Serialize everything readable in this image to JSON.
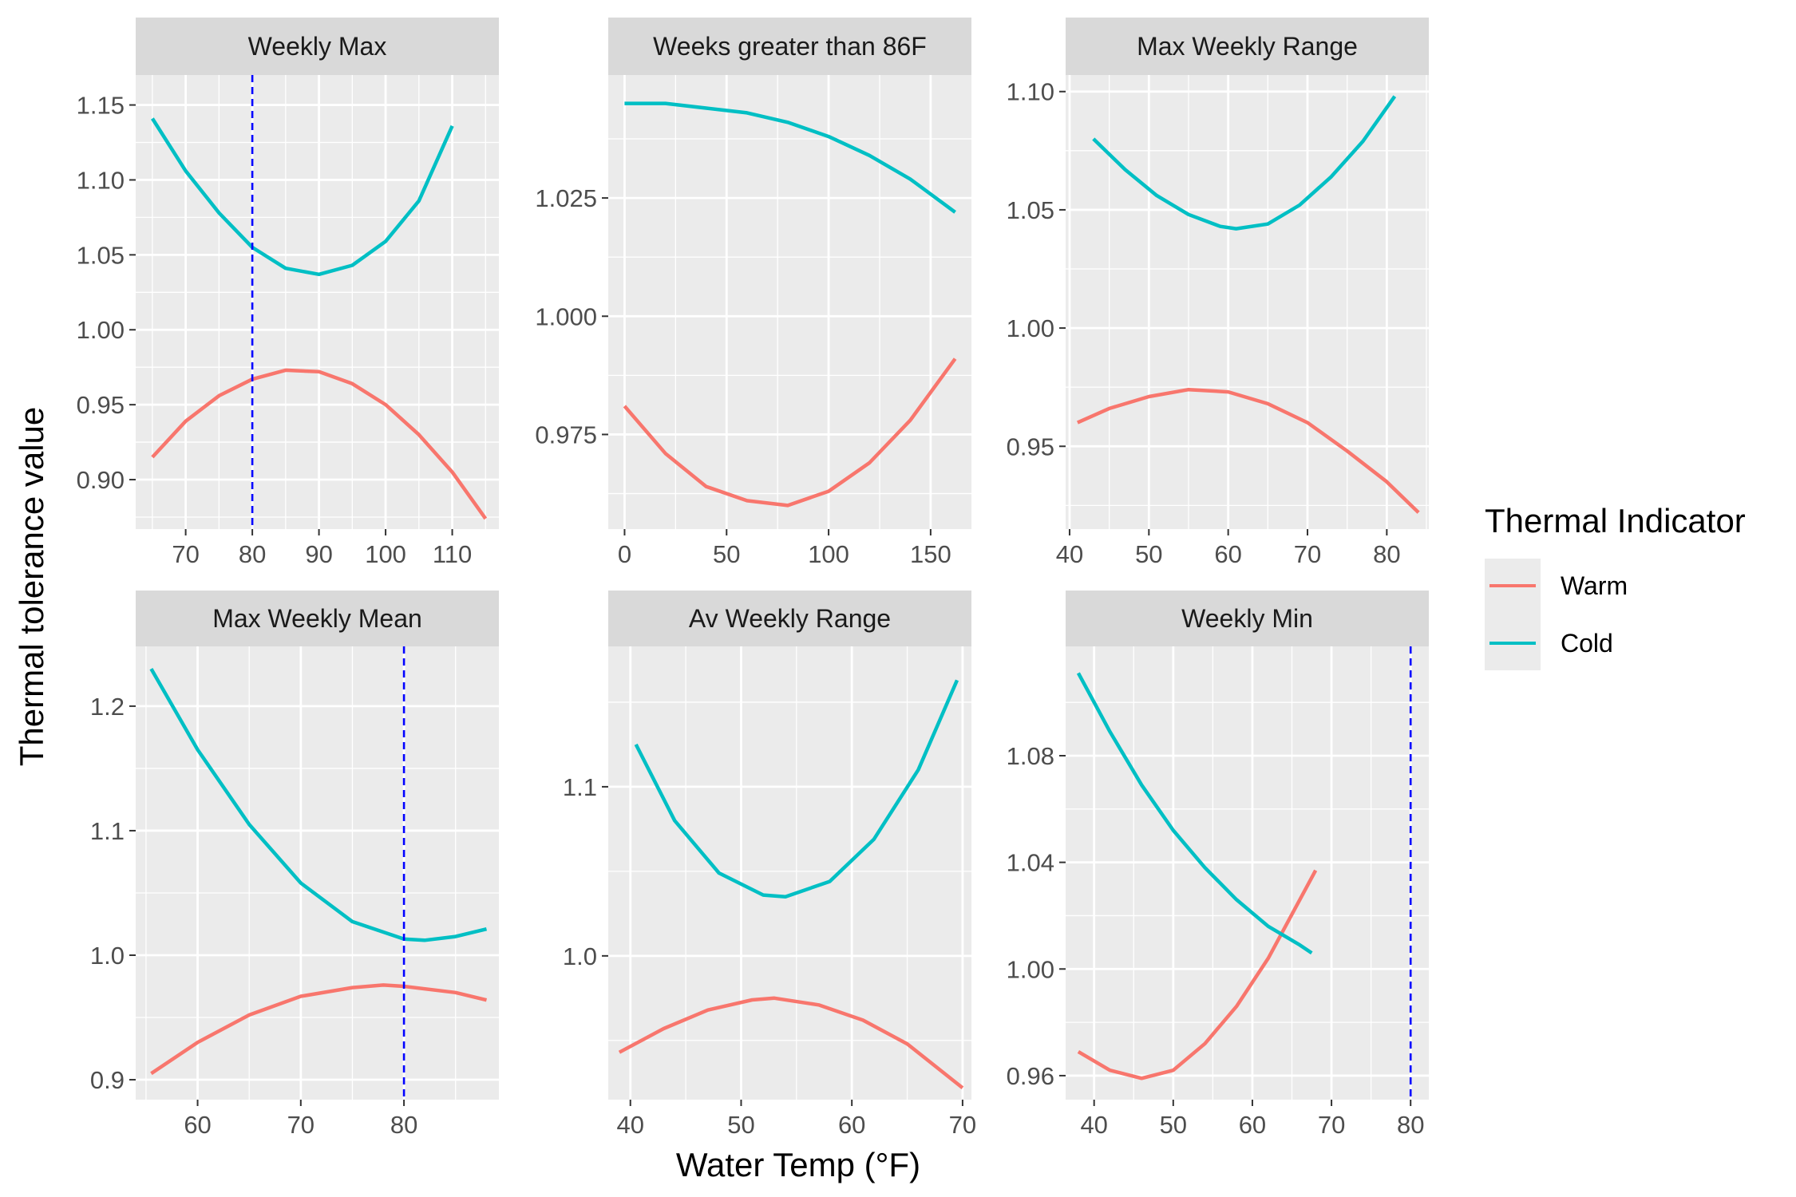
{
  "chart_data": {
    "type": "line",
    "xlabel": "Water Temp (°F)",
    "ylabel": "Thermal tolerance value",
    "legend": {
      "title": "Thermal Indicator",
      "position": "right",
      "entries": [
        {
          "name": "Warm",
          "color": "#F8766D"
        },
        {
          "name": "Cold",
          "color": "#00BFC4"
        }
      ]
    },
    "colors": {
      "Warm": "#F8766D",
      "Cold": "#00BFC4",
      "reference": "#0000FF",
      "panel_bg": "#EBEBEB",
      "strip_bg": "#D9D9D9",
      "grid": "#FFFFFF"
    },
    "grid": true,
    "panels": [
      {
        "title": "Weekly Max",
        "xlim": [
          62.5,
          117
        ],
        "ylim": [
          0.867,
          1.17
        ],
        "xticks": [
          70,
          80,
          90,
          100,
          110
        ],
        "yticks": [
          0.9,
          0.95,
          1.0,
          1.05,
          1.1,
          1.15
        ],
        "ytick_labels": [
          "0.90",
          "0.95",
          "1.00",
          "1.05",
          "1.10",
          "1.15"
        ],
        "vline": 80,
        "series": [
          {
            "name": "Warm",
            "x": [
              65,
              70,
              75,
              80,
              85,
              90,
              95,
              100,
              105,
              110,
              115
            ],
            "y": [
              0.915,
              0.939,
              0.956,
              0.967,
              0.973,
              0.972,
              0.964,
              0.95,
              0.93,
              0.905,
              0.874
            ]
          },
          {
            "name": "Cold",
            "x": [
              65,
              70,
              75,
              80,
              85,
              90,
              95,
              100,
              105,
              110
            ],
            "y": [
              1.141,
              1.106,
              1.078,
              1.055,
              1.041,
              1.037,
              1.043,
              1.059,
              1.086,
              1.136
            ]
          }
        ]
      },
      {
        "title": "Weeks greater than 86F",
        "xlim": [
          -8,
          170
        ],
        "ylim": [
          0.955,
          1.051
        ],
        "xticks": [
          0,
          50,
          100,
          150
        ],
        "yticks": [
          0.975,
          1.0,
          1.025
        ],
        "ytick_labels": [
          "0.975",
          "1.000",
          "1.025"
        ],
        "vline": null,
        "series": [
          {
            "name": "Warm",
            "x": [
              0,
              20,
              40,
              60,
              80,
              100,
              120,
              140,
              162
            ],
            "y": [
              0.981,
              0.971,
              0.964,
              0.961,
              0.96,
              0.963,
              0.969,
              0.978,
              0.991
            ]
          },
          {
            "name": "Cold",
            "x": [
              0,
              20,
              40,
              60,
              80,
              100,
              120,
              140,
              162
            ],
            "y": [
              1.045,
              1.045,
              1.044,
              1.043,
              1.041,
              1.038,
              1.034,
              1.029,
              1.022
            ]
          }
        ]
      },
      {
        "title": "Max Weekly Range",
        "xlim": [
          39.5,
          85.3
        ],
        "ylim": [
          0.915,
          1.107
        ],
        "xticks": [
          40,
          50,
          60,
          70,
          80
        ],
        "yticks": [
          0.95,
          1.0,
          1.05,
          1.1
        ],
        "ytick_labels": [
          "0.95",
          "1.00",
          "1.05",
          "1.10"
        ],
        "vline": null,
        "series": [
          {
            "name": "Warm",
            "x": [
              41,
              45,
              50,
              55,
              60,
              65,
              70,
              75,
              80,
              84
            ],
            "y": [
              0.96,
              0.966,
              0.971,
              0.974,
              0.973,
              0.968,
              0.96,
              0.948,
              0.935,
              0.922
            ]
          },
          {
            "name": "Cold",
            "x": [
              43,
              47,
              51,
              55,
              59,
              61,
              65,
              69,
              73,
              77,
              81
            ],
            "y": [
              1.08,
              1.067,
              1.056,
              1.048,
              1.043,
              1.042,
              1.044,
              1.052,
              1.064,
              1.079,
              1.098
            ]
          }
        ]
      },
      {
        "title": "Max Weekly Mean",
        "xlim": [
          54,
          89.2
        ],
        "ylim": [
          0.884,
          1.248
        ],
        "xticks": [
          60,
          70,
          80
        ],
        "yticks": [
          0.9,
          1.0,
          1.1,
          1.2
        ],
        "ytick_labels": [
          "0.9",
          "1.0",
          "1.1",
          "1.2"
        ],
        "vline": 80,
        "series": [
          {
            "name": "Warm",
            "x": [
              55.5,
              60,
              65,
              70,
              75,
              78,
              80,
              85,
              88
            ],
            "y": [
              0.905,
              0.93,
              0.952,
              0.967,
              0.974,
              0.976,
              0.975,
              0.97,
              0.964
            ]
          },
          {
            "name": "Cold",
            "x": [
              55.5,
              60,
              65,
              70,
              75,
              80,
              82,
              85,
              88
            ],
            "y": [
              1.23,
              1.165,
              1.105,
              1.058,
              1.027,
              1.013,
              1.012,
              1.015,
              1.021
            ]
          }
        ]
      },
      {
        "title": "Av Weekly Range",
        "xlim": [
          38,
          70.8
        ],
        "ylim": [
          0.915,
          1.183
        ],
        "xticks": [
          40,
          50,
          60,
          70
        ],
        "yticks": [
          1.0,
          1.1
        ],
        "ytick_labels": [
          "1.0",
          "1.1"
        ],
        "vline": null,
        "series": [
          {
            "name": "Warm",
            "x": [
              39,
              43,
              47,
              51,
              53,
              57,
              61,
              65,
              70
            ],
            "y": [
              0.943,
              0.957,
              0.968,
              0.974,
              0.975,
              0.971,
              0.962,
              0.948,
              0.922
            ]
          },
          {
            "name": "Cold",
            "x": [
              40.5,
              44,
              48,
              52,
              54,
              58,
              62,
              66,
              69.5
            ],
            "y": [
              1.125,
              1.08,
              1.049,
              1.036,
              1.035,
              1.044,
              1.069,
              1.11,
              1.163
            ]
          }
        ]
      },
      {
        "title": "Weekly Min",
        "xlim": [
          36.4,
          82.3
        ],
        "ylim": [
          0.951,
          1.121
        ],
        "xticks": [
          40,
          50,
          60,
          70,
          80
        ],
        "yticks": [
          0.96,
          1.0,
          1.04,
          1.08
        ],
        "ytick_labels": [
          "0.96",
          "1.00",
          "1.04",
          "1.08"
        ],
        "vline": 80,
        "series": [
          {
            "name": "Warm",
            "x": [
              38,
              42,
              46,
              50,
              54,
              58,
              62,
              66,
              68
            ],
            "y": [
              0.969,
              0.962,
              0.959,
              0.962,
              0.972,
              0.986,
              1.004,
              1.026,
              1.037
            ]
          },
          {
            "name": "Cold",
            "x": [
              38,
              42,
              46,
              50,
              54,
              58,
              62,
              66,
              67.5
            ],
            "y": [
              1.111,
              1.089,
              1.069,
              1.052,
              1.038,
              1.026,
              1.016,
              1.009,
              1.006
            ]
          }
        ]
      }
    ]
  }
}
